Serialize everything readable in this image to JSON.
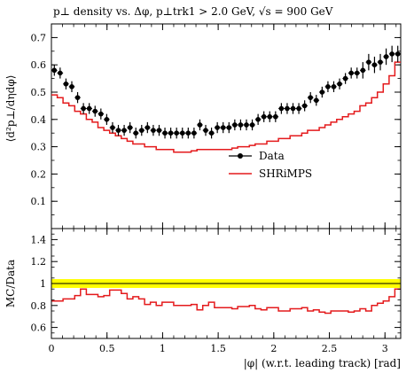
{
  "chart_data": [
    {
      "type": "scatter",
      "title": "p⊥ density vs. Δφ, p⊥trk1 > 2.0 GeV, √s = 900 GeV",
      "ylabel": "⟨d²p⊥/dηdφ⟩",
      "xlim": [
        0,
        3.14159
      ],
      "ylim": [
        0,
        0.75
      ],
      "yticks": [
        "0.1",
        "0.2",
        "0.3",
        "0.4",
        "0.5",
        "0.6",
        "0.7"
      ],
      "grid": false,
      "legend_position": "center-right",
      "legend": [
        "Data",
        "SHRiMPS"
      ],
      "series": [
        {
          "name": "Data",
          "style": "points-with-errorbars",
          "color": "#000000",
          "x": [
            0.0262,
            0.0785,
            0.1309,
            0.1833,
            0.2356,
            0.288,
            0.3403,
            0.3927,
            0.4451,
            0.4974,
            0.5498,
            0.6021,
            0.6545,
            0.7069,
            0.7592,
            0.8116,
            0.8639,
            0.9163,
            0.9687,
            1.021,
            1.0734,
            1.1257,
            1.1781,
            1.2305,
            1.2828,
            1.3352,
            1.3875,
            1.4399,
            1.4923,
            1.5446,
            1.597,
            1.6493,
            1.7017,
            1.7541,
            1.8064,
            1.8588,
            1.9111,
            1.9635,
            2.0159,
            2.0682,
            2.1206,
            2.1729,
            2.2253,
            2.2777,
            2.33,
            2.3824,
            2.4347,
            2.4871,
            2.5395,
            2.5918,
            2.6442,
            2.6965,
            2.7489,
            2.8013,
            2.8536,
            2.906,
            2.9583,
            3.0107,
            3.0631,
            3.1154
          ],
          "y": [
            0.58,
            0.57,
            0.53,
            0.52,
            0.48,
            0.44,
            0.44,
            0.43,
            0.42,
            0.4,
            0.37,
            0.36,
            0.36,
            0.37,
            0.35,
            0.36,
            0.37,
            0.36,
            0.36,
            0.35,
            0.35,
            0.35,
            0.35,
            0.35,
            0.35,
            0.38,
            0.36,
            0.35,
            0.37,
            0.37,
            0.37,
            0.38,
            0.38,
            0.38,
            0.38,
            0.4,
            0.41,
            0.41,
            0.41,
            0.44,
            0.44,
            0.44,
            0.44,
            0.45,
            0.48,
            0.47,
            0.5,
            0.52,
            0.52,
            0.53,
            0.55,
            0.57,
            0.57,
            0.58,
            0.61,
            0.6,
            0.61,
            0.63,
            0.64,
            0.64
          ],
          "yerr": [
            0.02,
            0.02,
            0.02,
            0.02,
            0.02,
            0.02,
            0.02,
            0.02,
            0.02,
            0.02,
            0.02,
            0.02,
            0.02,
            0.02,
            0.02,
            0.02,
            0.02,
            0.02,
            0.02,
            0.02,
            0.02,
            0.02,
            0.02,
            0.02,
            0.02,
            0.02,
            0.02,
            0.02,
            0.02,
            0.02,
            0.02,
            0.02,
            0.02,
            0.02,
            0.02,
            0.02,
            0.02,
            0.02,
            0.02,
            0.02,
            0.02,
            0.02,
            0.02,
            0.02,
            0.02,
            0.02,
            0.02,
            0.02,
            0.02,
            0.02,
            0.02,
            0.02,
            0.02,
            0.03,
            0.03,
            0.03,
            0.03,
            0.03,
            0.03,
            0.03
          ]
        },
        {
          "name": "SHRiMPS",
          "style": "step-line",
          "color": "#e41a1c",
          "x": [
            0.0262,
            0.0785,
            0.1309,
            0.1833,
            0.2356,
            0.288,
            0.3403,
            0.3927,
            0.4451,
            0.4974,
            0.5498,
            0.6021,
            0.6545,
            0.7069,
            0.7592,
            0.8116,
            0.8639,
            0.9163,
            0.9687,
            1.021,
            1.0734,
            1.1257,
            1.1781,
            1.2305,
            1.2828,
            1.3352,
            1.3875,
            1.4399,
            1.4923,
            1.5446,
            1.597,
            1.6493,
            1.7017,
            1.7541,
            1.8064,
            1.8588,
            1.9111,
            1.9635,
            2.0159,
            2.0682,
            2.1206,
            2.1729,
            2.2253,
            2.2777,
            2.33,
            2.3824,
            2.4347,
            2.4871,
            2.5395,
            2.5918,
            2.6442,
            2.6965,
            2.7489,
            2.8013,
            2.8536,
            2.906,
            2.9583,
            3.0107,
            3.0631,
            3.1154
          ],
          "y": [
            0.49,
            0.48,
            0.46,
            0.45,
            0.43,
            0.42,
            0.4,
            0.39,
            0.37,
            0.36,
            0.35,
            0.34,
            0.33,
            0.32,
            0.31,
            0.31,
            0.3,
            0.3,
            0.29,
            0.29,
            0.29,
            0.28,
            0.28,
            0.28,
            0.285,
            0.29,
            0.29,
            0.29,
            0.29,
            0.29,
            0.29,
            0.295,
            0.3,
            0.3,
            0.305,
            0.31,
            0.31,
            0.32,
            0.32,
            0.33,
            0.33,
            0.34,
            0.34,
            0.35,
            0.36,
            0.36,
            0.37,
            0.38,
            0.39,
            0.4,
            0.41,
            0.42,
            0.43,
            0.45,
            0.46,
            0.48,
            0.5,
            0.53,
            0.56,
            0.61
          ]
        }
      ]
    },
    {
      "type": "line",
      "ylabel": "MC/Data",
      "xlabel": "|φ| (w.r.t. leading track) [rad]",
      "xlim": [
        0,
        3.14159
      ],
      "ylim": [
        0.5,
        1.5
      ],
      "xticks": [
        "0",
        "0.5",
        "1",
        "1.5",
        "2",
        "2.5",
        "3"
      ],
      "yticks": [
        "0.6",
        "0.8",
        "1",
        "1.2",
        "1.4"
      ],
      "band": {
        "center": 1.0,
        "low": 0.96,
        "high": 1.04,
        "color": "#ffff00"
      },
      "series": [
        {
          "name": "SHRiMPS",
          "style": "step-line",
          "color": "#e41a1c",
          "x": [
            0.0262,
            0.0785,
            0.1309,
            0.1833,
            0.2356,
            0.288,
            0.3403,
            0.3927,
            0.4451,
            0.4974,
            0.5498,
            0.6021,
            0.6545,
            0.7069,
            0.7592,
            0.8116,
            0.8639,
            0.9163,
            0.9687,
            1.021,
            1.0734,
            1.1257,
            1.1781,
            1.2305,
            1.2828,
            1.3352,
            1.3875,
            1.4399,
            1.4923,
            1.5446,
            1.597,
            1.6493,
            1.7017,
            1.7541,
            1.8064,
            1.8588,
            1.9111,
            1.9635,
            2.0159,
            2.0682,
            2.1206,
            2.1729,
            2.2253,
            2.2777,
            2.33,
            2.3824,
            2.4347,
            2.4871,
            2.5395,
            2.5918,
            2.6442,
            2.6965,
            2.7489,
            2.8013,
            2.8536,
            2.906,
            2.9583,
            3.0107,
            3.0631,
            3.1154
          ],
          "y": [
            0.84,
            0.84,
            0.86,
            0.86,
            0.89,
            0.95,
            0.9,
            0.9,
            0.88,
            0.89,
            0.94,
            0.94,
            0.91,
            0.86,
            0.88,
            0.86,
            0.81,
            0.83,
            0.8,
            0.83,
            0.83,
            0.8,
            0.8,
            0.8,
            0.81,
            0.76,
            0.8,
            0.83,
            0.78,
            0.78,
            0.78,
            0.77,
            0.79,
            0.79,
            0.8,
            0.77,
            0.76,
            0.78,
            0.78,
            0.75,
            0.75,
            0.77,
            0.77,
            0.78,
            0.75,
            0.76,
            0.74,
            0.73,
            0.75,
            0.75,
            0.75,
            0.74,
            0.75,
            0.77,
            0.75,
            0.8,
            0.82,
            0.84,
            0.88,
            0.95
          ]
        }
      ]
    }
  ]
}
